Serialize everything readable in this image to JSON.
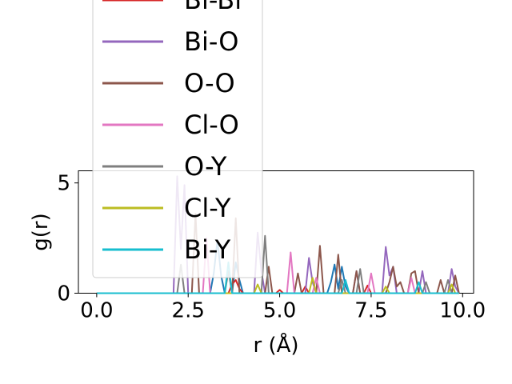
{
  "chart_data": {
    "type": "line",
    "title": "",
    "xlabel": "r (Å)",
    "ylabel": "g(r)",
    "xlim": [
      -0.5,
      10.3
    ],
    "ylim": [
      0,
      5.55
    ],
    "xticks": [
      0.0,
      2.5,
      5.0,
      7.5,
      10.0
    ],
    "xtick_labels": [
      "0.0",
      "2.5",
      "5.0",
      "7.5",
      "10.0"
    ],
    "yticks": [
      0,
      5
    ],
    "ytick_labels": [
      "0",
      "5"
    ],
    "grid": false,
    "legend_placement": "upper-left, extending above the axes",
    "legend_items": [
      {
        "label": "Bi-Bi",
        "color": "#d62728"
      },
      {
        "label": "Bi-O",
        "color": "#9467bd"
      },
      {
        "label": "O-O",
        "color": "#8c564b"
      },
      {
        "label": "Cl-O",
        "color": "#e377c2"
      },
      {
        "label": "O-Y",
        "color": "#7f7f7f"
      },
      {
        "label": "Cl-Y",
        "color": "#bcbd22"
      },
      {
        "label": "Bi-Y",
        "color": "#17becf"
      }
    ],
    "series": [
      {
        "name": "Bi-Y",
        "color": "#1f77b4",
        "x": [
          0,
          3.1,
          3.2,
          3.3,
          3.4,
          3.5,
          3.6,
          3.7,
          3.8,
          3.9,
          4.0,
          6.3,
          6.4,
          6.5,
          6.6,
          6.7,
          6.8,
          6.9,
          9.9
        ],
        "y": [
          0,
          0,
          0.9,
          2.4,
          0.8,
          0,
          0,
          0,
          1.4,
          0.6,
          0,
          0,
          0.5,
          1.3,
          0.2,
          1.2,
          0.3,
          0,
          0
        ]
      },
      {
        "name": "Bi-Bi",
        "color": "#d62728",
        "x": [
          0,
          3.6,
          3.7,
          3.8,
          3.9,
          4.0,
          4.9,
          5.0,
          5.1,
          5.6,
          5.7,
          5.8,
          7.3,
          7.4,
          7.5,
          9.9
        ],
        "y": [
          0,
          0,
          0.4,
          0.6,
          0.2,
          0,
          0,
          0.15,
          0,
          0,
          0.3,
          0,
          0,
          0.35,
          0,
          0
        ]
      },
      {
        "name": "Bi-O",
        "color": "#9467bd",
        "x": [
          0,
          2.1,
          2.2,
          2.3,
          2.4,
          2.5,
          4.3,
          4.4,
          4.5,
          4.6,
          5.7,
          5.8,
          5.9,
          6.0,
          7.0,
          7.1,
          7.2,
          7.8,
          7.9,
          8.0,
          8.1,
          8.2,
          8.8,
          8.9,
          9.0,
          9.6,
          9.7,
          9.8,
          9.9
        ],
        "y": [
          0,
          0,
          5.3,
          2.0,
          4.9,
          0,
          0,
          2.75,
          1.0,
          0,
          0,
          1.6,
          0.5,
          0,
          0,
          1.0,
          0,
          0,
          2.1,
          0.8,
          1.2,
          0,
          0,
          1.0,
          0,
          0,
          1.1,
          0.3,
          0
        ]
      },
      {
        "name": "O-O",
        "color": "#8c564b",
        "x": [
          0,
          2.6,
          2.7,
          2.8,
          3.7,
          3.8,
          3.9,
          4.6,
          4.7,
          4.8,
          5.4,
          5.5,
          5.6,
          6.0,
          6.1,
          6.2,
          6.5,
          6.6,
          6.7,
          7.0,
          7.1,
          7.2,
          7.9,
          8.0,
          8.1,
          8.2,
          8.3,
          8.4,
          8.5,
          8.6,
          8.7,
          8.8,
          9.3,
          9.4,
          9.5,
          9.7,
          9.8,
          9.9
        ],
        "y": [
          0,
          0,
          3.6,
          0,
          0,
          3.4,
          0,
          0,
          1.2,
          0,
          0,
          0.9,
          0,
          0,
          2.15,
          0,
          0,
          1.75,
          0,
          0,
          1.0,
          0,
          0,
          0.5,
          1.2,
          0.3,
          0.5,
          0,
          0,
          0.9,
          1.0,
          0,
          0,
          0.6,
          0,
          0,
          0.8,
          0
        ]
      },
      {
        "name": "Cl-O",
        "color": "#e377c2",
        "x": [
          0,
          2.9,
          3.0,
          3.1,
          5.2,
          5.3,
          5.4,
          5.9,
          6.0,
          6.1,
          7.4,
          7.5,
          7.6,
          8.5,
          8.6,
          8.7,
          9.9
        ],
        "y": [
          0,
          0,
          2.5,
          0,
          0,
          1.85,
          0,
          0,
          0.7,
          0,
          0,
          0.9,
          0,
          0,
          0.7,
          0,
          0
        ]
      },
      {
        "name": "O-Y",
        "color": "#7f7f7f",
        "x": [
          0,
          2.2,
          2.3,
          2.4,
          3.5,
          3.6,
          3.7,
          4.5,
          4.6,
          4.7,
          6.6,
          6.7,
          6.8,
          7.1,
          7.2,
          7.3,
          8.9,
          9.0,
          9.1,
          9.5,
          9.6,
          9.7,
          9.9
        ],
        "y": [
          0,
          0,
          1.3,
          0,
          0,
          1.0,
          0,
          0,
          2.6,
          0,
          0,
          0.6,
          0,
          0,
          1.1,
          0,
          0,
          0.5,
          0,
          0,
          0.6,
          0,
          0
        ]
      },
      {
        "name": "Cl-Y",
        "color": "#bcbd22",
        "x": [
          0,
          4.3,
          4.4,
          4.5,
          5.8,
          5.9,
          6.0,
          7.8,
          7.9,
          8.0,
          9.6,
          9.7,
          9.8,
          9.9
        ],
        "y": [
          0,
          0,
          0.4,
          0,
          0,
          0.7,
          0,
          0,
          0.3,
          0,
          0,
          0.4,
          0,
          0
        ]
      },
      {
        "name": "Bi-Y",
        "color": "#17becf",
        "x": [
          0,
          3.5,
          3.6,
          3.7,
          6.7,
          6.8,
          6.9,
          8.7,
          8.8,
          8.9,
          9.9
        ],
        "y": [
          0,
          0,
          1.4,
          0,
          0,
          0.6,
          0,
          0,
          0.5,
          0,
          0
        ]
      }
    ]
  }
}
